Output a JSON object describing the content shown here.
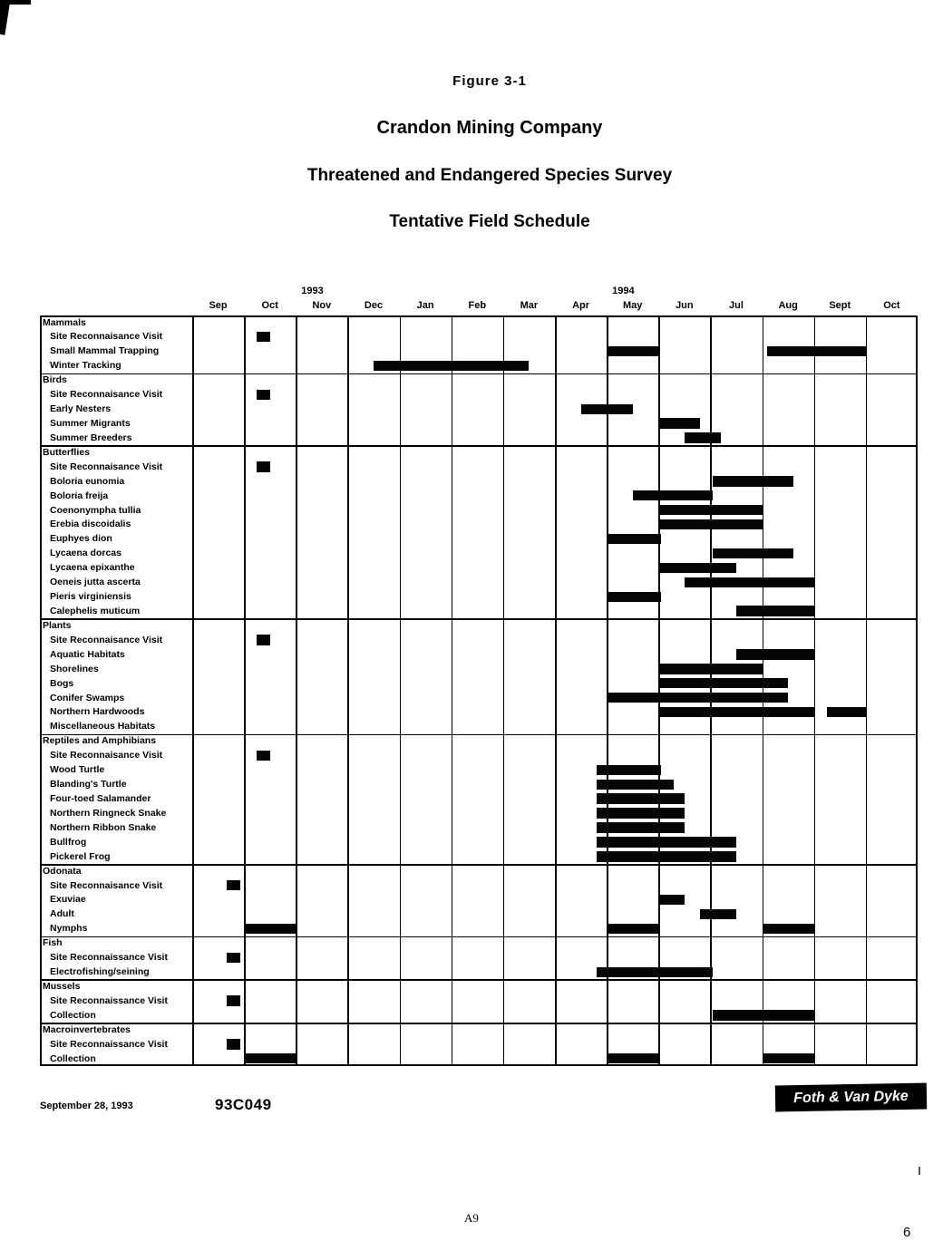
{
  "header": {
    "figure_label": "Figure  3-1",
    "title_lines": [
      "Crandon Mining Company",
      "Threatened and Endangered Species Survey",
      "Tentative Field Schedule"
    ]
  },
  "footer": {
    "date": "September 28, 1993",
    "doc_number": "93C049",
    "brand": "Foth & Van Dyke",
    "page_ref": "A9",
    "page_number": "6"
  },
  "chart_data": {
    "type": "gantt",
    "title": "Tentative Field Schedule",
    "bar_color": "#050505",
    "grid": true,
    "months": [
      "Sep",
      "Oct",
      "Nov",
      "Dec",
      "Jan",
      "Feb",
      "Mar",
      "Apr",
      "May",
      "Jun",
      "Jul",
      "Aug",
      "Sept",
      "Oct"
    ],
    "years": [
      {
        "label": "1993",
        "month_index": 2
      },
      {
        "label": "1994",
        "month_index": 8
      }
    ],
    "bars_unit": "month offsets, 0 = start of Sep 1993, 14 = end of Oct 1994",
    "rows": [
      {
        "label": "Mammals",
        "group": true,
        "bars": []
      },
      {
        "label": "Site Reconnaisance Visit",
        "group": false,
        "bars": [
          [
            1.24,
            1.5
          ]
        ]
      },
      {
        "label": "Small Mammal Trapping",
        "group": false,
        "bars": [
          [
            8.0,
            9.0
          ],
          [
            11.1,
            13.0
          ]
        ]
      },
      {
        "label": "Winter Tracking",
        "group": false,
        "bars": [
          [
            3.5,
            6.5
          ]
        ]
      },
      {
        "label": "Birds",
        "group": true,
        "bars": []
      },
      {
        "label": "Site Reconnaisance Visit",
        "group": false,
        "bars": [
          [
            1.24,
            1.5
          ]
        ]
      },
      {
        "label": "Early Nesters",
        "group": false,
        "bars": [
          [
            7.5,
            8.5
          ]
        ]
      },
      {
        "label": "Summer Migrants",
        "group": false,
        "bars": [
          [
            9.0,
            9.8
          ]
        ]
      },
      {
        "label": "Summer Breeders",
        "group": false,
        "bars": [
          [
            9.5,
            10.2
          ]
        ]
      },
      {
        "label": "Butterflies",
        "group": true,
        "bars": []
      },
      {
        "label": "Site Reconnaisance Visit",
        "group": false,
        "bars": [
          [
            1.24,
            1.5
          ]
        ]
      },
      {
        "label": "Boloria eunomia",
        "group": false,
        "bars": [
          [
            10.05,
            11.6
          ]
        ]
      },
      {
        "label": "Boloria freija",
        "group": false,
        "bars": [
          [
            8.5,
            10.05
          ]
        ]
      },
      {
        "label": "Coenonympha tullia",
        "group": false,
        "bars": [
          [
            9.0,
            11.0
          ]
        ]
      },
      {
        "label": "Erebia discoidalis",
        "group": false,
        "bars": [
          [
            9.0,
            11.0
          ]
        ]
      },
      {
        "label": "Euphyes dion",
        "group": false,
        "bars": [
          [
            8.0,
            9.05
          ]
        ]
      },
      {
        "label": "Lycaena dorcas",
        "group": false,
        "bars": [
          [
            10.05,
            11.6
          ]
        ]
      },
      {
        "label": "Lycaena epixanthe",
        "group": false,
        "bars": [
          [
            9.0,
            10.5
          ]
        ]
      },
      {
        "label": "Oeneis jutta ascerta",
        "group": false,
        "bars": [
          [
            9.5,
            12.0
          ]
        ]
      },
      {
        "label": "Pieris virginiensis",
        "group": false,
        "bars": [
          [
            8.0,
            9.05
          ]
        ]
      },
      {
        "label": "Calephelis muticum",
        "group": false,
        "bars": [
          [
            10.5,
            12.0
          ]
        ]
      },
      {
        "label": "Plants",
        "group": true,
        "bars": []
      },
      {
        "label": "Site Reconnaisance Visit",
        "group": false,
        "bars": [
          [
            1.24,
            1.5
          ]
        ]
      },
      {
        "label": "Aquatic Habitats",
        "group": false,
        "bars": [
          [
            10.5,
            12.0
          ]
        ]
      },
      {
        "label": "Shorelines",
        "group": false,
        "bars": [
          [
            9.0,
            11.0
          ]
        ]
      },
      {
        "label": "Bogs",
        "group": false,
        "bars": [
          [
            9.0,
            11.5
          ]
        ]
      },
      {
        "label": "Conifer Swamps",
        "group": false,
        "bars": [
          [
            8.0,
            11.5
          ]
        ]
      },
      {
        "label": "Northern Hardwoods",
        "group": false,
        "bars": [
          [
            9.0,
            12.0
          ],
          [
            12.25,
            13.0
          ]
        ]
      },
      {
        "label": "Miscellaneous Habitats",
        "group": false,
        "bars": []
      },
      {
        "label": "Reptiles and Amphibians",
        "group": true,
        "bars": []
      },
      {
        "label": "Site Reconnaisance Visit",
        "group": false,
        "bars": [
          [
            1.24,
            1.5
          ]
        ]
      },
      {
        "label": "Wood Turtle",
        "group": false,
        "bars": [
          [
            7.8,
            9.05
          ]
        ]
      },
      {
        "label": "Blanding's Turtle",
        "group": false,
        "bars": [
          [
            7.8,
            9.3
          ]
        ]
      },
      {
        "label": "Four-toed Salamander",
        "group": false,
        "bars": [
          [
            7.8,
            9.5
          ]
        ]
      },
      {
        "label": "Northern Ringneck Snake",
        "group": false,
        "bars": [
          [
            7.8,
            9.5
          ]
        ]
      },
      {
        "label": "Northern Ribbon Snake",
        "group": false,
        "bars": [
          [
            7.8,
            9.5
          ]
        ]
      },
      {
        "label": "Bullfrog",
        "group": false,
        "bars": [
          [
            7.8,
            10.5
          ]
        ]
      },
      {
        "label": "Pickerel Frog",
        "group": false,
        "bars": [
          [
            7.8,
            10.5
          ]
        ]
      },
      {
        "label": "Odonata",
        "group": true,
        "bars": []
      },
      {
        "label": "Site Reconnaisance Visit",
        "group": false,
        "bars": [
          [
            0.66,
            0.92
          ]
        ]
      },
      {
        "label": "Exuviae",
        "group": false,
        "bars": [
          [
            9.0,
            9.5
          ]
        ]
      },
      {
        "label": "Adult",
        "group": false,
        "bars": [
          [
            9.8,
            10.5
          ]
        ]
      },
      {
        "label": "Nymphs",
        "group": false,
        "bars": [
          [
            1.0,
            2.0
          ],
          [
            8.0,
            9.0
          ],
          [
            11.0,
            12.0
          ]
        ]
      },
      {
        "label": "Fish",
        "group": true,
        "bars": []
      },
      {
        "label": "Site Reconnaissance Visit",
        "group": false,
        "bars": [
          [
            0.66,
            0.92
          ]
        ]
      },
      {
        "label": "Electrofishing/seining",
        "group": false,
        "bars": [
          [
            7.8,
            10.05
          ]
        ]
      },
      {
        "label": "Mussels",
        "group": true,
        "bars": []
      },
      {
        "label": "Site Reconnaissance Visit",
        "group": false,
        "bars": [
          [
            0.66,
            0.92
          ]
        ]
      },
      {
        "label": "Collection",
        "group": false,
        "bars": [
          [
            10.05,
            12.0
          ]
        ]
      },
      {
        "label": "Macroinvertebrates",
        "group": true,
        "bars": []
      },
      {
        "label": "Site Reconnaissance Visit",
        "group": false,
        "bars": [
          [
            0.66,
            0.92
          ]
        ]
      },
      {
        "label": "Collection",
        "group": false,
        "bars": [
          [
            1.0,
            2.0
          ],
          [
            8.0,
            9.0
          ],
          [
            11.0,
            12.0
          ]
        ]
      }
    ]
  }
}
